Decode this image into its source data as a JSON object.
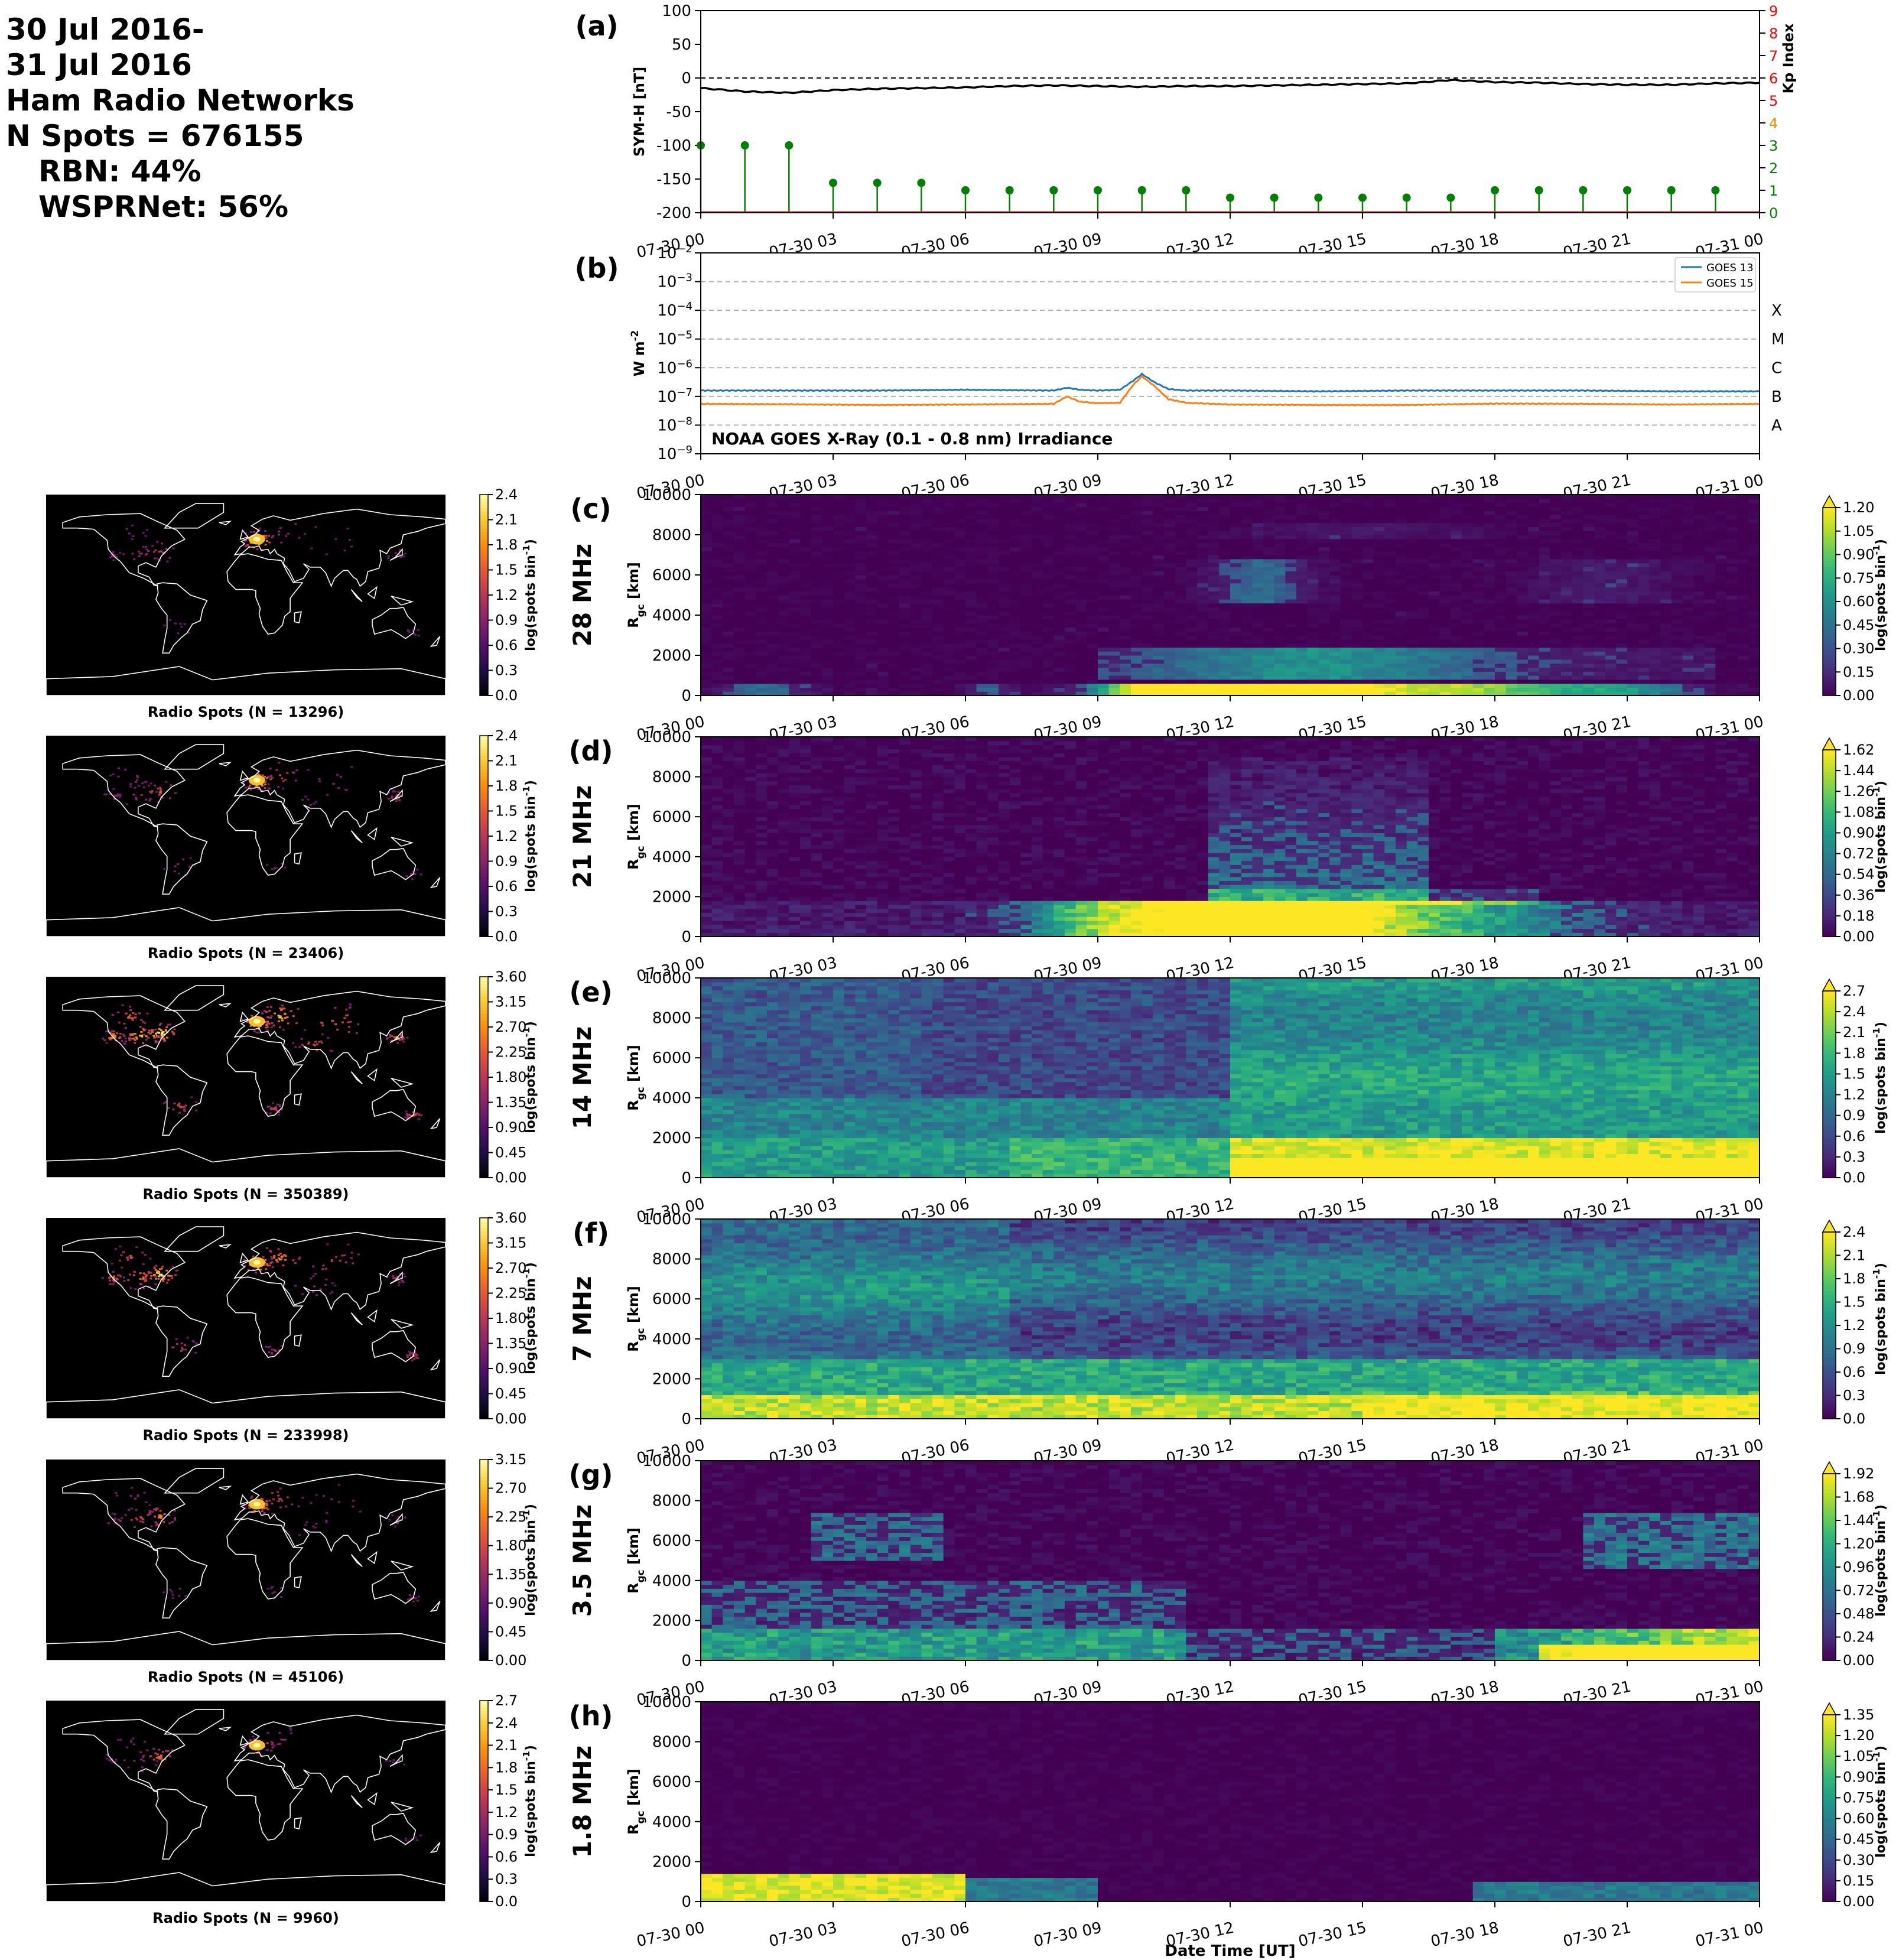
{
  "header": {
    "date_line_1": "30 Jul 2016-",
    "date_line_2": "31 Jul 2016",
    "network_title": "Ham Radio Networks",
    "n_spots": "N Spots = 676155",
    "rbn": "RBN: 44%",
    "wsprnet": "WSPRNet: 56%"
  },
  "time_ticks": [
    "07-30 00",
    "07-30 03",
    "07-30 06",
    "07-30 09",
    "07-30 12",
    "07-30 15",
    "07-30 18",
    "07-30 21",
    "07-31 00"
  ],
  "chart_data": [
    {
      "panel": "(a)",
      "type": "line",
      "ylabel": "SYM-H [nT]",
      "ylim": [
        -200,
        100
      ],
      "yticks": [
        100,
        50,
        0,
        -50,
        -100,
        -150,
        -200
      ],
      "reference_line": 0,
      "symh": {
        "hours": [
          0,
          1,
          2,
          3,
          4,
          5,
          6,
          7,
          8,
          9,
          10,
          11,
          12,
          13,
          14,
          15,
          16,
          17,
          18,
          19,
          20,
          21,
          22,
          23,
          24
        ],
        "values": [
          -15,
          -20,
          -22,
          -18,
          -16,
          -15,
          -14,
          -12,
          -11,
          -12,
          -13,
          -12,
          -12,
          -11,
          -10,
          -9,
          -8,
          -3,
          -6,
          -7,
          -9,
          -10,
          -10,
          -8,
          -7
        ]
      },
      "kp": {
        "axis_label": "Kp Index",
        "ylim": [
          0,
          9
        ],
        "yticks": [
          0,
          1,
          2,
          3,
          4,
          5,
          6,
          7,
          8,
          9
        ],
        "hours": [
          0,
          1,
          2,
          3,
          4,
          5,
          6,
          7,
          8,
          9,
          10,
          11,
          12,
          13,
          14,
          15,
          16,
          17,
          18,
          19,
          20,
          21,
          22,
          23
        ],
        "values": [
          3,
          3,
          3,
          1.33,
          1.33,
          1.33,
          1,
          1,
          1,
          1,
          1,
          1,
          0.67,
          0.67,
          0.67,
          0.67,
          0.67,
          0.67,
          1,
          1,
          1,
          1,
          1,
          1
        ],
        "stem_color": "#008000",
        "tick_colors_green": [
          0,
          1,
          2,
          3
        ],
        "tick_colors_orange": [
          4
        ],
        "tick_colors_red": [
          5,
          6,
          7,
          8,
          9
        ]
      }
    },
    {
      "panel": "(b)",
      "type": "line",
      "ylabel": "W m$^{-2}$",
      "yscale": "log",
      "ylim": [
        1e-09,
        0.01
      ],
      "ytick_exponents": [
        -2,
        -3,
        -4,
        -5,
        -6,
        -7,
        -8,
        -9
      ],
      "flare_classes": [
        {
          "label": "X",
          "exp": -4
        },
        {
          "label": "M",
          "exp": -5
        },
        {
          "label": "C",
          "exp": -6
        },
        {
          "label": "B",
          "exp": -7
        },
        {
          "label": "A",
          "exp": -8
        }
      ],
      "annotation": "NOAA GOES X-Ray (0.1 - 0.8 nm) Irradiance",
      "series": [
        {
          "name": "GOES 13",
          "color": "#1f77b4",
          "hours": [
            0,
            2,
            4,
            6,
            8,
            8.3,
            8.6,
            9,
            9.5,
            9.8,
            10,
            10.3,
            10.6,
            11,
            12,
            14,
            16,
            18,
            20,
            22,
            24
          ],
          "values": [
            1.6e-07,
            1.6e-07,
            1.6e-07,
            1.7e-07,
            1.6e-07,
            2e-07,
            1.7e-07,
            1.6e-07,
            1.7e-07,
            3.5e-07,
            6e-07,
            3e-07,
            1.8e-07,
            1.6e-07,
            1.6e-07,
            1.5e-07,
            1.6e-07,
            1.6e-07,
            1.6e-07,
            1.5e-07,
            1.5e-07
          ]
        },
        {
          "name": "GOES 15",
          "color": "#ff7f0e",
          "hours": [
            0,
            2,
            4,
            6,
            8,
            8.3,
            8.6,
            9,
            9.5,
            9.8,
            10,
            10.3,
            10.6,
            11,
            12,
            14,
            16,
            18,
            20,
            22,
            24
          ],
          "values": [
            5.5e-08,
            5.3e-08,
            5e-08,
            5.2e-08,
            5.5e-08,
            1e-07,
            6.5e-08,
            5.8e-08,
            6e-08,
            2.5e-07,
            5e-07,
            2.2e-07,
            8e-08,
            6e-08,
            5.2e-08,
            5e-08,
            5e-08,
            5.6e-08,
            5.5e-08,
            5.2e-08,
            5.5e-08
          ]
        }
      ]
    },
    {
      "panel": "(c)",
      "type": "heatmap",
      "band": "28 MHz",
      "map_caption": "Radio Spots (N = 13296)",
      "map_max": 2.4,
      "map_ticks": [
        "0.0",
        "0.3",
        "0.6",
        "0.9",
        "1.2",
        "1.5",
        "1.8",
        "2.1",
        "2.4"
      ],
      "cbar_ticks": [
        "0.00",
        "0.15",
        "0.30",
        "0.45",
        "0.60",
        "0.75",
        "0.90",
        "1.05",
        "1.20"
      ],
      "vmax": 1.2
    },
    {
      "panel": "(d)",
      "type": "heatmap",
      "band": "21 MHz",
      "map_caption": "Radio Spots (N = 23406)",
      "map_max": 2.4,
      "map_ticks": [
        "0.0",
        "0.3",
        "0.6",
        "0.9",
        "1.2",
        "1.5",
        "1.8",
        "2.1",
        "2.4"
      ],
      "cbar_ticks": [
        "0.00",
        "0.18",
        "0.36",
        "0.54",
        "0.72",
        "0.90",
        "1.08",
        "1.26",
        "1.44",
        "1.62"
      ],
      "vmax": 1.62
    },
    {
      "panel": "(e)",
      "type": "heatmap",
      "band": "14 MHz",
      "map_caption": "Radio Spots (N = 350389)",
      "map_max": 3.6,
      "map_ticks": [
        "0.00",
        "0.45",
        "0.90",
        "1.35",
        "1.80",
        "2.25",
        "2.70",
        "3.15",
        "3.60"
      ],
      "cbar_ticks": [
        "0.0",
        "0.3",
        "0.6",
        "0.9",
        "1.2",
        "1.5",
        "1.8",
        "2.1",
        "2.4",
        "2.7"
      ],
      "vmax": 2.7
    },
    {
      "panel": "(f)",
      "type": "heatmap",
      "band": "7 MHz",
      "map_caption": "Radio Spots (N = 233998)",
      "map_max": 3.6,
      "map_ticks": [
        "0.00",
        "0.45",
        "0.90",
        "1.35",
        "1.80",
        "2.25",
        "2.70",
        "3.15",
        "3.60"
      ],
      "cbar_ticks": [
        "0.0",
        "0.3",
        "0.6",
        "0.9",
        "1.2",
        "1.5",
        "1.8",
        "2.1",
        "2.4"
      ],
      "vmax": 2.4
    },
    {
      "panel": "(g)",
      "type": "heatmap",
      "band": "3.5 MHz",
      "map_caption": "Radio Spots (N = 45106)",
      "map_max": 3.15,
      "map_ticks": [
        "0.00",
        "0.45",
        "0.90",
        "1.35",
        "1.80",
        "2.25",
        "2.70",
        "3.15"
      ],
      "cbar_ticks": [
        "0.00",
        "0.24",
        "0.48",
        "0.72",
        "0.96",
        "1.20",
        "1.44",
        "1.68",
        "1.92"
      ],
      "vmax": 1.92
    },
    {
      "panel": "(h)",
      "type": "heatmap",
      "band": "1.8 MHz",
      "map_caption": "Radio Spots (N = 9960)",
      "map_max": 2.7,
      "map_ticks": [
        "0.0",
        "0.3",
        "0.6",
        "0.9",
        "1.2",
        "1.5",
        "1.8",
        "2.1",
        "2.4",
        "2.7"
      ],
      "cbar_ticks": [
        "0.00",
        "0.15",
        "0.30",
        "0.45",
        "0.60",
        "0.75",
        "0.90",
        "1.05",
        "1.20",
        "1.35"
      ],
      "vmax": 1.35
    }
  ],
  "heatmap_common": {
    "ylabel": "R$_{gc}$ [km]",
    "ylim": [
      0,
      10000
    ],
    "yticks": [
      0,
      2000,
      4000,
      6000,
      8000,
      10000
    ],
    "cbar_label": "log(spots bin$^{-1}$)",
    "xlabel": "Date Time [UT]"
  }
}
